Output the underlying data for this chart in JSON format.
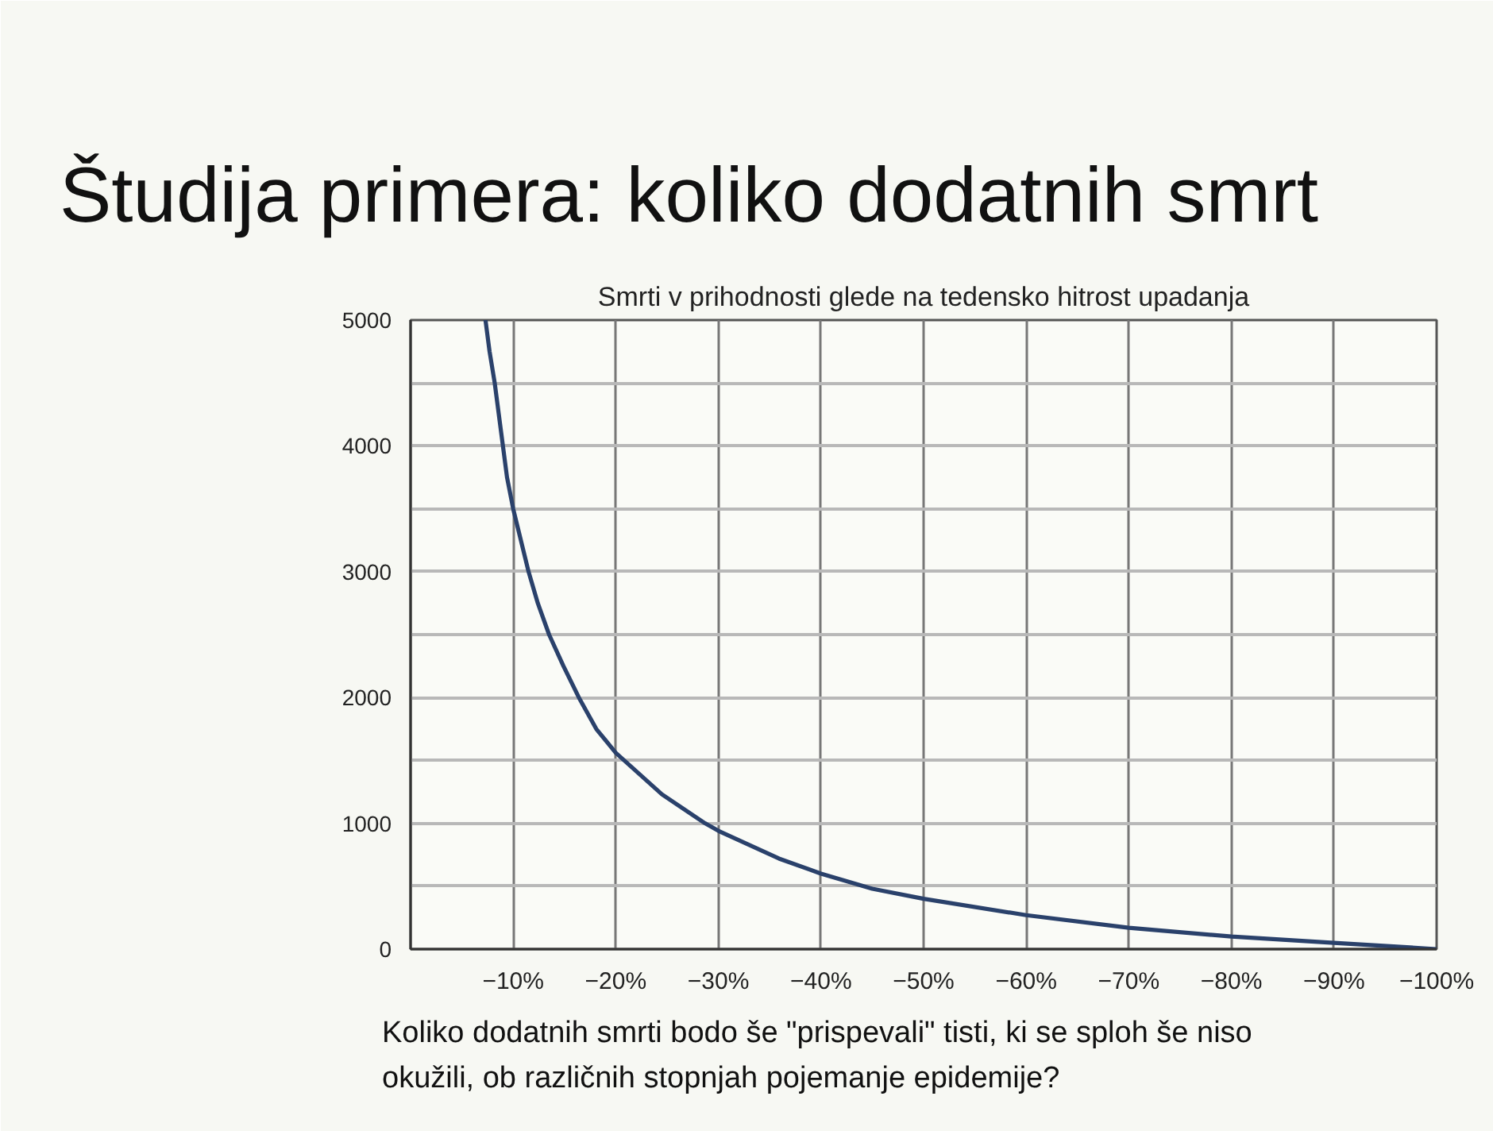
{
  "chart_data": {
    "type": "line",
    "title": "Študija primera: koliko dodatnih smrt",
    "subtitle": "Smrti v prihodnosti glede na tedensko hitrost upadanja",
    "annotations": [
      "Koliko dodatnih smrti bodo še \"prispevali\" tisti, ki se sploh še niso okužili, ob različnih stopnjah pojemanje epidemije?"
    ],
    "x": [
      -7.3,
      -7.7,
      -8.2,
      -8.6,
      -9.0,
      -9.4,
      -10,
      -11.5,
      -12.4,
      -13.5,
      -14.9,
      -16.4,
      -18.1,
      -20,
      -24.5,
      -28.7,
      -30,
      -35.9,
      -40,
      -45,
      -50,
      -60,
      -70,
      -80,
      -90,
      -100
    ],
    "series": [
      {
        "color": "#2a416b",
        "values": [
          5000,
          4750,
          4500,
          4250,
          4000,
          3750,
          3500,
          3000,
          2750,
          2500,
          2250,
          2000,
          1750,
          1560,
          1230,
          1000,
          940,
          720,
          600,
          480,
          400,
          270,
          170,
          100,
          50,
          0
        ]
      }
    ],
    "xlim": [
      0,
      -100
    ],
    "xticks": [
      {
        "value": -10,
        "label": "−10%"
      },
      {
        "value": -20,
        "label": "−20%"
      },
      {
        "value": -30,
        "label": "−30%"
      },
      {
        "value": -40,
        "label": "−40%"
      },
      {
        "value": -50,
        "label": "−50%"
      },
      {
        "value": -60,
        "label": "−60%"
      },
      {
        "value": -70,
        "label": "−70%"
      },
      {
        "value": -80,
        "label": "−80%"
      },
      {
        "value": -90,
        "label": "−90%"
      },
      {
        "value": -100,
        "label": "−100%"
      }
    ],
    "ylim": [
      0,
      5000
    ],
    "yticks": [
      0,
      {
        "value": 500,
        "label": null
      },
      1000,
      {
        "value": 1500,
        "label": null
      },
      2000,
      {
        "value": 2500,
        "label": null
      },
      3000,
      {
        "value": 3500,
        "label": null
      },
      4000,
      {
        "value": 4500,
        "label": null
      },
      5000
    ],
    "grid": true,
    "line_style": "solid"
  }
}
